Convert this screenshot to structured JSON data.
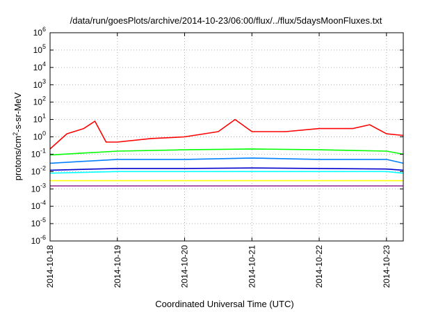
{
  "chart_data": {
    "type": "line",
    "title": "/data/run/goesPlots/archive/2014-10-23/06:00/flux/../flux/5daysMoonFluxes.txt",
    "xlabel": "Coordinated Universal Time (UTC)",
    "ylabel": "protons/cm²-s-sr-MeV",
    "ylabel_base": "protons/cm",
    "ylabel_sup": "2",
    "ylabel_rest": "-s-sr-MeV",
    "y_scale": "log",
    "ylim": [
      1e-06,
      1000000.0
    ],
    "y_ticks": [
      {
        "exp": "-6",
        "value": 1e-06
      },
      {
        "exp": "-5",
        "value": 1e-05
      },
      {
        "exp": "-4",
        "value": 0.0001
      },
      {
        "exp": "-3",
        "value": 0.001
      },
      {
        "exp": "-2",
        "value": 0.01
      },
      {
        "exp": "-1",
        "value": 0.1
      },
      {
        "exp": "0",
        "value": 1
      },
      {
        "exp": "1",
        "value": 10
      },
      {
        "exp": "2",
        "value": 100
      },
      {
        "exp": "3",
        "value": 1000
      },
      {
        "exp": "4",
        "value": 10000
      },
      {
        "exp": "5",
        "value": 100000
      },
      {
        "exp": "6",
        "value": 1000000
      }
    ],
    "y_tick_base": "10",
    "xlim": [
      "2014-10-18 00:00",
      "2014-10-23 06:00"
    ],
    "x_ticks": [
      "2014-10-18",
      "2014-10-19",
      "2014-10-20",
      "2014-10-21",
      "2014-10-22",
      "2014-10-23"
    ],
    "grid": true,
    "series": [
      {
        "color": "#ff0000",
        "x": [
          "2014-10-18 00:00",
          "2014-10-18 06:00",
          "2014-10-18 12:00",
          "2014-10-18 16:00",
          "2014-10-18 20:00",
          "2014-10-19 00:00",
          "2014-10-19 12:00",
          "2014-10-20 00:00",
          "2014-10-20 12:00",
          "2014-10-20 18:00",
          "2014-10-21 00:00",
          "2014-10-21 12:00",
          "2014-10-22 00:00",
          "2014-10-22 12:00",
          "2014-10-22 18:00",
          "2014-10-23 00:00",
          "2014-10-23 06:00"
        ],
        "y": [
          0.2,
          1.5,
          3,
          8,
          0.5,
          0.5,
          0.8,
          1,
          2,
          10,
          2,
          2,
          3,
          3,
          5,
          1.5,
          1.2
        ]
      },
      {
        "color": "#00ff00",
        "x": [
          "2014-10-18 00:00",
          "2014-10-19 00:00",
          "2014-10-20 00:00",
          "2014-10-21 00:00",
          "2014-10-22 00:00",
          "2014-10-23 00:00",
          "2014-10-23 06:00"
        ],
        "y": [
          0.09,
          0.15,
          0.18,
          0.2,
          0.18,
          0.15,
          0.1
        ]
      },
      {
        "color": "#0080ff",
        "x": [
          "2014-10-18 00:00",
          "2014-10-19 00:00",
          "2014-10-20 00:00",
          "2014-10-21 00:00",
          "2014-10-22 00:00",
          "2014-10-23 00:00",
          "2014-10-23 06:00"
        ],
        "y": [
          0.03,
          0.05,
          0.05,
          0.06,
          0.05,
          0.05,
          0.03
        ]
      },
      {
        "color": "#00ffff",
        "x": [
          "2014-10-18 00:00",
          "2014-10-19 00:00",
          "2014-10-20 00:00",
          "2014-10-21 00:00",
          "2014-10-22 00:00",
          "2014-10-23 00:00",
          "2014-10-23 06:00"
        ],
        "y": [
          0.008,
          0.01,
          0.01,
          0.01,
          0.01,
          0.01,
          0.008
        ]
      },
      {
        "color": "#0000cc",
        "x": [
          "2014-10-18 00:00",
          "2014-10-19 00:00",
          "2014-10-20 00:00",
          "2014-10-21 00:00",
          "2014-10-22 00:00",
          "2014-10-23 00:00",
          "2014-10-23 06:00"
        ],
        "y": [
          0.012,
          0.015,
          0.015,
          0.016,
          0.015,
          0.014,
          0.012
        ]
      },
      {
        "color": "#ffff00",
        "x": [
          "2014-10-18 00:00",
          "2014-10-19 00:00",
          "2014-10-20 00:00",
          "2014-10-21 00:00",
          "2014-10-22 00:00",
          "2014-10-23 00:00",
          "2014-10-23 06:00"
        ],
        "y": [
          0.003,
          0.003,
          0.003,
          0.003,
          0.003,
          0.003,
          0.003
        ]
      },
      {
        "color": "#993399",
        "x": [
          "2014-10-18 00:00",
          "2014-10-19 00:00",
          "2014-10-20 00:00",
          "2014-10-21 00:00",
          "2014-10-22 00:00",
          "2014-10-23 00:00",
          "2014-10-23 06:00"
        ],
        "y": [
          0.0015,
          0.0015,
          0.0015,
          0.0015,
          0.0015,
          0.0015,
          0.0015
        ]
      }
    ]
  }
}
